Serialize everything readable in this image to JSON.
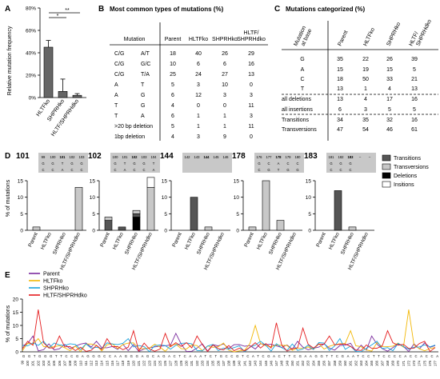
{
  "panelA": {
    "letter": "A",
    "ylabel": "Relative mutation frequency",
    "yticks": [
      "0%",
      "20%",
      "40%",
      "60%",
      "80%"
    ],
    "categories": [
      "HLTFko",
      "SHPRHko",
      "HLTF/SHPRHdko"
    ],
    "values": [
      0.45,
      0.055,
      0.02
    ],
    "errors": [
      0.06,
      0.11,
      0.015
    ],
    "sig1": "*",
    "sig2": "**"
  },
  "panelB": {
    "letter": "B",
    "title": "Most common types of mutations (%)",
    "headers": [
      "Mutation",
      "Parent",
      "HLTFko",
      "SHPRHko",
      "HLTF/ SHPRHdko"
    ],
    "rows": [
      [
        "C/G",
        "A/T",
        "18",
        "40",
        "26",
        "29"
      ],
      [
        "C/G",
        "G/C",
        "10",
        "6",
        "6",
        "16"
      ],
      [
        "C/G",
        "T/A",
        "25",
        "24",
        "27",
        "13"
      ],
      [
        "A",
        "T",
        "5",
        "3",
        "10",
        "0"
      ],
      [
        "A",
        "G",
        "6",
        "12",
        "3",
        "3"
      ],
      [
        "T",
        "G",
        "4",
        "0",
        "0",
        "11"
      ],
      [
        "T",
        "A",
        "6",
        "1",
        "1",
        "3"
      ],
      [
        ">20 bp deletion",
        "",
        "5",
        "1",
        "1",
        "11"
      ],
      [
        "1bp deletion",
        "",
        "4",
        "3",
        "9",
        "0"
      ]
    ]
  },
  "panelC": {
    "letter": "C",
    "title": "Mutations categorized (%)",
    "headers": [
      "Mutation at base",
      "Parent",
      "HLTFko",
      "SHPRHko",
      "HLTF/ SHPRHdko"
    ],
    "rows": [
      [
        "G",
        "35",
        "22",
        "26",
        "39"
      ],
      [
        "A",
        "15",
        "19",
        "15",
        "5"
      ],
      [
        "C",
        "18",
        "50",
        "33",
        "21"
      ],
      [
        "T",
        "13",
        "1",
        "4",
        "13"
      ],
      [
        "all deletions",
        "13",
        "4",
        "17",
        "16"
      ],
      [
        "all insertions",
        "6",
        "3",
        "5",
        "5"
      ],
      [
        "Transitions",
        "34",
        "35",
        "32",
        "16"
      ],
      [
        "Transversions",
        "47",
        "54",
        "46",
        "61"
      ]
    ]
  },
  "panelD": {
    "letter": "D",
    "ylabel": "% of mutations",
    "xcats": [
      "Parent",
      "HLTFko",
      "SHPRHko",
      "HLTF/SHPRHdko"
    ],
    "legend": [
      "Transitions",
      "Transversions",
      "Deletions",
      "Insitions"
    ],
    "colors": {
      "Transitions": "#555555",
      "Transversions": "#c8c8c8",
      "Deletions": "#000000",
      "Insitions": "#ffffff"
    },
    "charts": [
      {
        "label": "101",
        "positions": [
          "99",
          "100",
          "101",
          "102",
          "103"
        ],
        "bold": "101",
        "bases": [
          "G",
          "G",
          "T",
          "G",
          "G"
        ],
        "comp": [
          "C",
          "C",
          "A",
          "C",
          "C"
        ],
        "ymax": 15,
        "yticks": [
          "0",
          "5",
          "10",
          "15"
        ],
        "bars": [
          {
            "Transversions": 1
          },
          {},
          {},
          {
            "Transversions": 13
          }
        ]
      },
      {
        "label": "102",
        "positions": [
          "100",
          "101",
          "102",
          "103",
          "104"
        ],
        "bold": "102",
        "bases": [
          "G",
          "T",
          "G",
          "G",
          "T"
        ],
        "comp": [
          "C",
          "A",
          "C",
          "C",
          "A"
        ],
        "ymax": 15,
        "yticks": [
          "0",
          "5",
          "10",
          "15"
        ],
        "bars": [
          {
            "Transitions": 3,
            "Transversions": 1
          },
          {
            "Transitions": 1
          },
          {
            "Deletions": 4,
            "Transitions": 1,
            "Transversions": 1
          },
          {
            "Transversions": 13,
            "Insitions": 3
          }
        ]
      },
      {
        "label": "144",
        "positions": [
          "142",
          "143",
          "144",
          "145",
          "146"
        ],
        "bold": "144",
        "bases": [
          "",
          "",
          "",
          "",
          ""
        ],
        "comp": [
          "",
          "",
          "",
          "",
          ""
        ],
        "ymax": 15,
        "yticks": [
          "0",
          "5",
          "10",
          "15"
        ],
        "bars": [
          {},
          {
            "Transitions": 10
          },
          {
            "Transversions": 1
          },
          {}
        ]
      },
      {
        "label": "178",
        "positions": [
          "176",
          "177",
          "178",
          "179",
          "180"
        ],
        "bold": "178",
        "bases": [
          "G",
          "C",
          "A",
          "C",
          "C"
        ],
        "comp": [
          "C",
          "G",
          "T",
          "G",
          "G"
        ],
        "ymax": 15,
        "yticks": [
          "0",
          "5",
          "10",
          "15"
        ],
        "bars": [
          {
            "Transversions": 1
          },
          {
            "Transversions": 15
          },
          {
            "Transversions": 3
          },
          {}
        ]
      },
      {
        "label": "183",
        "positions": [
          "181",
          "182",
          "183",
          "–",
          "–"
        ],
        "bold": "183",
        "bases": [
          "G",
          "G",
          "G",
          "",
          ""
        ],
        "comp": [
          "C",
          "C",
          "C",
          "",
          ""
        ],
        "ymax": 15,
        "yticks": [
          "0",
          "5",
          "10",
          "15"
        ],
        "bars": [
          {},
          {
            "Transitions": 12
          },
          {
            "Transversions": 1
          },
          {}
        ]
      }
    ]
  },
  "panelE": {
    "letter": "E",
    "ylabel": "% of mutations",
    "yticks": [
      "0",
      "5",
      "10",
      "15",
      "20"
    ],
    "ylim": [
      0,
      20
    ],
    "series": [
      {
        "name": "Parent",
        "color": "#7b2c9e"
      },
      {
        "name": "HLTFko",
        "color": "#f2b705"
      },
      {
        "name": "SHPRHko",
        "color": "#1aa3dd"
      },
      {
        "name": "HLTF/SHPRHdko",
        "color": "#e41a1c"
      }
    ],
    "sequence": "GGTGGGTTCCGAGGGCCAAGGGAGCAGACTCAAATCTGCCGTCATCGACTTCGAAGGTTCGAATCCTTCCCCACCACCA"
  }
}
